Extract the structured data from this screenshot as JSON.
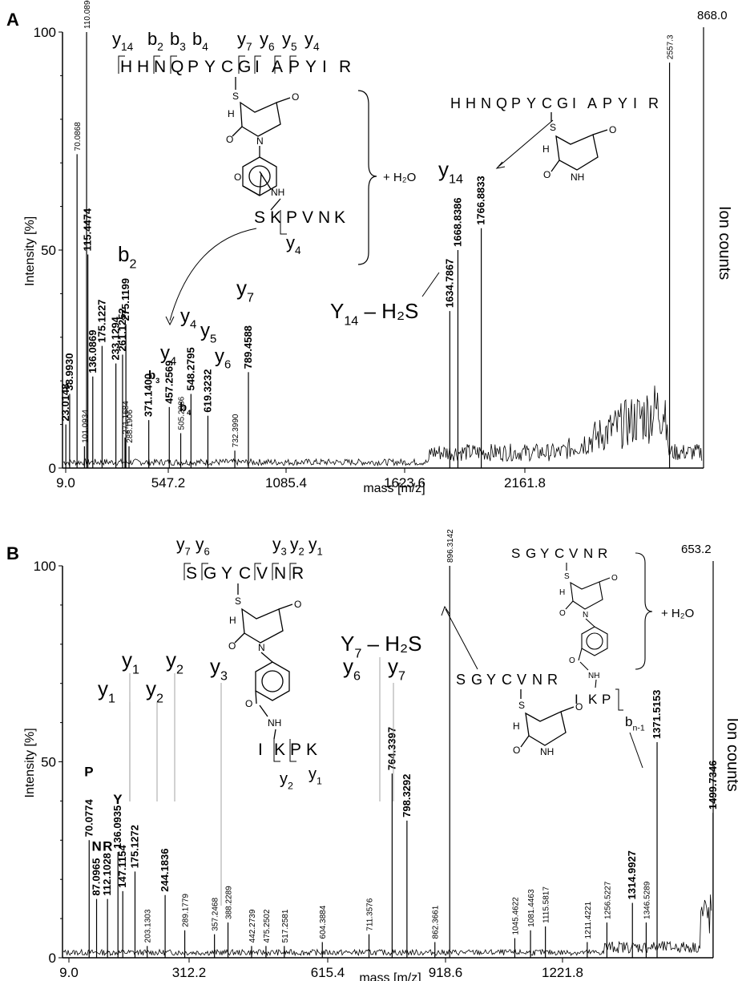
{
  "chart_data": [
    {
      "type": "mass-spectrum",
      "panel_label": "A",
      "xlabel": "mass [m/z]",
      "ylabel": "Intensity [%]",
      "y2label": "Ion counts",
      "ion_count_max": "868.0",
      "xlim": [
        9.0,
        2700.0
      ],
      "ylim": [
        0,
        100
      ],
      "x_ticks": [
        "9.0",
        "547.2",
        "1085.4",
        "1623.6",
        "2161.8"
      ],
      "y_ticks": [
        "0",
        "50",
        "100"
      ],
      "peaks": [
        {
          "mz": 23.0148,
          "intensity": 10,
          "label": "23.0148"
        },
        {
          "mz": 38.993,
          "intensity": 17,
          "label": "38.9930"
        },
        {
          "mz": 70.0868,
          "intensity": 72,
          "label": "70.0868"
        },
        {
          "mz": 101.0934,
          "intensity": 5,
          "label": "101.0934"
        },
        {
          "mz": 110.089,
          "intensity": 100,
          "label": "110.0890"
        },
        {
          "mz": 115.4474,
          "intensity": 49,
          "label": "115.4474"
        },
        {
          "mz": 136.0869,
          "intensity": 21,
          "label": "136.0869"
        },
        {
          "mz": 175.1227,
          "intensity": 28,
          "label": "175.1227"
        },
        {
          "mz": 233.1294,
          "intensity": 24,
          "label": "233.1294"
        },
        {
          "mz": 261.1252,
          "intensity": 26,
          "label": "261.1252"
        },
        {
          "mz": 271.1684,
          "intensity": 7,
          "label": "271.1684"
        },
        {
          "mz": 275.1199,
          "intensity": 33,
          "label": "275.1199"
        },
        {
          "mz": 288.1906,
          "intensity": 5,
          "label": "288.1906"
        },
        {
          "mz": 371.14,
          "intensity": 11,
          "label": "371.1400"
        },
        {
          "mz": 457.2569,
          "intensity": 14,
          "label": "457.2569"
        },
        {
          "mz": 505.2886,
          "intensity": 8,
          "label": "505.2886"
        },
        {
          "mz": 548.2795,
          "intensity": 17,
          "label": "548.2795"
        },
        {
          "mz": 619.3232,
          "intensity": 12,
          "label": "619.3232"
        },
        {
          "mz": 732.399,
          "intensity": 4,
          "label": "732.3990"
        },
        {
          "mz": 789.4588,
          "intensity": 22,
          "label": "789.4588"
        },
        {
          "mz": 1634.7867,
          "intensity": 36,
          "label": "1634.7867"
        },
        {
          "mz": 1668.8386,
          "intensity": 50,
          "label": "1668.8386"
        },
        {
          "mz": 1766.8833,
          "intensity": 55,
          "label": "1766.8833"
        },
        {
          "mz": 2557.3,
          "intensity": 93,
          "label": "2557.3"
        }
      ],
      "annotations": [
        {
          "id": "b2",
          "base": "b",
          "sub": "2"
        },
        {
          "id": "b3",
          "base": "b",
          "sub": "3"
        },
        {
          "id": "b4",
          "base": "b",
          "sub": "4"
        },
        {
          "id": "y4a",
          "base": "y",
          "sub": "4"
        },
        {
          "id": "y4b",
          "base": "y",
          "sub": "4"
        },
        {
          "id": "y5",
          "base": "y",
          "sub": "5"
        },
        {
          "id": "y6",
          "base": "y",
          "sub": "6"
        },
        {
          "id": "y7",
          "base": "y",
          "sub": "7"
        },
        {
          "id": "y14",
          "base": "y",
          "sub": "14"
        },
        {
          "id": "Y14h2s",
          "base": "Y",
          "sub": "14",
          "suffix": " – H₂S"
        }
      ],
      "sequence_ions": [
        {
          "base": "y",
          "sub": "14"
        },
        {
          "base": "b",
          "sub": "2"
        },
        {
          "base": "b",
          "sub": "3"
        },
        {
          "base": "b",
          "sub": "4"
        },
        {
          "base": "y",
          "sub": "7"
        },
        {
          "base": "y",
          "sub": "6"
        },
        {
          "base": "y",
          "sub": "5"
        },
        {
          "base": "y",
          "sub": "4"
        }
      ],
      "peptide_sequence": "HHNQPYCGIAPYIR",
      "linked_peptide": "SKPVNK",
      "linked_ion": {
        "base": "y",
        "sub": "4"
      },
      "hydrolysis_label": "+ H₂O",
      "inset_sequence": "HHNQPYCGIAPYIR",
      "chem_atoms": {
        "S": "S",
        "H": "H",
        "N": "N",
        "O": "O",
        "NH": "NH"
      }
    },
    {
      "type": "mass-spectrum",
      "panel_label": "B",
      "xlabel": "mass [m/z]",
      "ylabel": "Intensity [%]",
      "y2label": "Ion counts",
      "ion_count_max": "653.2",
      "xlim": [
        9.0,
        1500.0
      ],
      "ylim": [
        0,
        100
      ],
      "x_ticks": [
        "9.0",
        "312.2",
        "615.4",
        "918.6",
        "1221.8"
      ],
      "y_ticks": [
        "0",
        "50",
        "100"
      ],
      "peaks": [
        {
          "mz": 70.0774,
          "intensity": 30,
          "label": "70.0774",
          "letter": "P"
        },
        {
          "mz": 87.0965,
          "intensity": 15,
          "label": "87.0965",
          "letter": "N"
        },
        {
          "mz": 112.1028,
          "intensity": 15,
          "label": "112.1028",
          "letter": "R"
        },
        {
          "mz": 136.0935,
          "intensity": 27,
          "label": "136.0935",
          "letter": "Y"
        },
        {
          "mz": 147.1154,
          "intensity": 17,
          "label": "147.1154"
        },
        {
          "mz": 175.1272,
          "intensity": 22,
          "label": "175.1272"
        },
        {
          "mz": 203.1303,
          "intensity": 3,
          "label": "203.1303"
        },
        {
          "mz": 244.1836,
          "intensity": 16,
          "label": "244.1836"
        },
        {
          "mz": 289.1779,
          "intensity": 7,
          "label": "289.1779"
        },
        {
          "mz": 357.2468,
          "intensity": 6,
          "label": "357.2468"
        },
        {
          "mz": 388.2289,
          "intensity": 9,
          "label": "388.2289"
        },
        {
          "mz": 442.2739,
          "intensity": 3,
          "label": "442.2739"
        },
        {
          "mz": 475.2502,
          "intensity": 3,
          "label": "475.2502"
        },
        {
          "mz": 517.2581,
          "intensity": 3,
          "label": "517.2581"
        },
        {
          "mz": 604.3884,
          "intensity": 4,
          "label": "604.3884"
        },
        {
          "mz": 711.3576,
          "intensity": 6,
          "label": "711.3576"
        },
        {
          "mz": 764.3397,
          "intensity": 47,
          "label": "764.3397"
        },
        {
          "mz": 798.3292,
          "intensity": 35,
          "label": "798.3292"
        },
        {
          "mz": 862.3661,
          "intensity": 4,
          "label": "862.3661"
        },
        {
          "mz": 896.3142,
          "intensity": 100,
          "label": "896.3142"
        },
        {
          "mz": 1045.4622,
          "intensity": 5,
          "label": "1045.4622"
        },
        {
          "mz": 1081.4463,
          "intensity": 7,
          "label": "1081.4463"
        },
        {
          "mz": 1115.5817,
          "intensity": 8,
          "label": "1115.5817"
        },
        {
          "mz": 1211.4221,
          "intensity": 4,
          "label": "1211.4221"
        },
        {
          "mz": 1256.5227,
          "intensity": 9,
          "label": "1256.5227"
        },
        {
          "mz": 1314.9927,
          "intensity": 14,
          "label": "1314.9927"
        },
        {
          "mz": 1346.5289,
          "intensity": 9,
          "label": "1346.5289"
        },
        {
          "mz": 1371.5153,
          "intensity": 55,
          "label": "1371.5153"
        },
        {
          "mz": 1499.7346,
          "intensity": 37,
          "label": "1499.7346"
        }
      ],
      "annotations": [
        {
          "id": "y1a",
          "base": "y",
          "sub": "1"
        },
        {
          "id": "y1b",
          "base": "y",
          "sub": "1"
        },
        {
          "id": "y2a",
          "base": "y",
          "sub": "2"
        },
        {
          "id": "y2b",
          "base": "y",
          "sub": "2"
        },
        {
          "id": "y3",
          "base": "y",
          "sub": "3"
        },
        {
          "id": "y6",
          "base": "y",
          "sub": "6"
        },
        {
          "id": "y7",
          "base": "y",
          "sub": "7"
        },
        {
          "id": "Y7h2s",
          "base": "Y",
          "sub": "7",
          "suffix": " – H₂S"
        }
      ],
      "sequence_ions": [
        {
          "base": "y",
          "sub": "7"
        },
        {
          "base": "y",
          "sub": "6"
        },
        {
          "base": "y",
          "sub": "3"
        },
        {
          "base": "y",
          "sub": "2"
        },
        {
          "base": "y",
          "sub": "1"
        }
      ],
      "peptide_sequence": "SGYCVNR",
      "linked_peptide": "IKPK",
      "linked_ions": [
        {
          "base": "y",
          "sub": "2"
        },
        {
          "base": "y",
          "sub": "1"
        }
      ],
      "inset_sequence": "SGYCVNR",
      "right_sequence": "SGYCVNR",
      "right_linked": "IKP",
      "right_ion": {
        "base": "b",
        "sub": "n-1"
      },
      "hydrolysis_label": "+ H₂O",
      "chem_atoms": {
        "S": "S",
        "H": "H",
        "N": "N",
        "O": "O",
        "NH": "NH"
      }
    }
  ]
}
